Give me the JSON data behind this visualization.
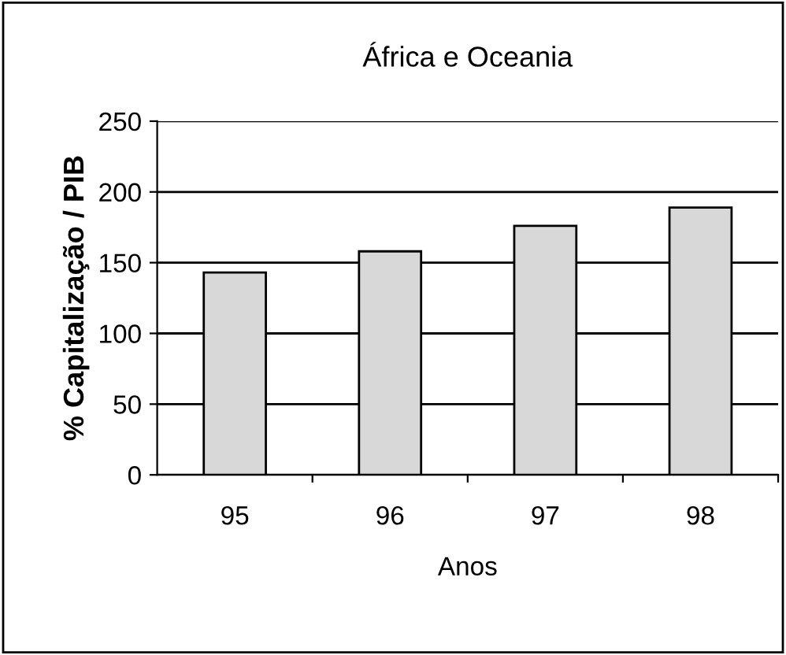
{
  "chart_data": {
    "type": "bar",
    "title": "África e Oceania",
    "xlabel": "Anos",
    "ylabel": "% Capitalização / PIB",
    "categories": [
      "95",
      "96",
      "97",
      "98"
    ],
    "values": [
      143,
      158,
      176,
      189
    ],
    "color": "#d8d8d8",
    "ylim": [
      0,
      250
    ],
    "yticks": [
      0,
      50,
      100,
      150,
      200,
      250
    ],
    "grid": "y",
    "legend": false
  }
}
